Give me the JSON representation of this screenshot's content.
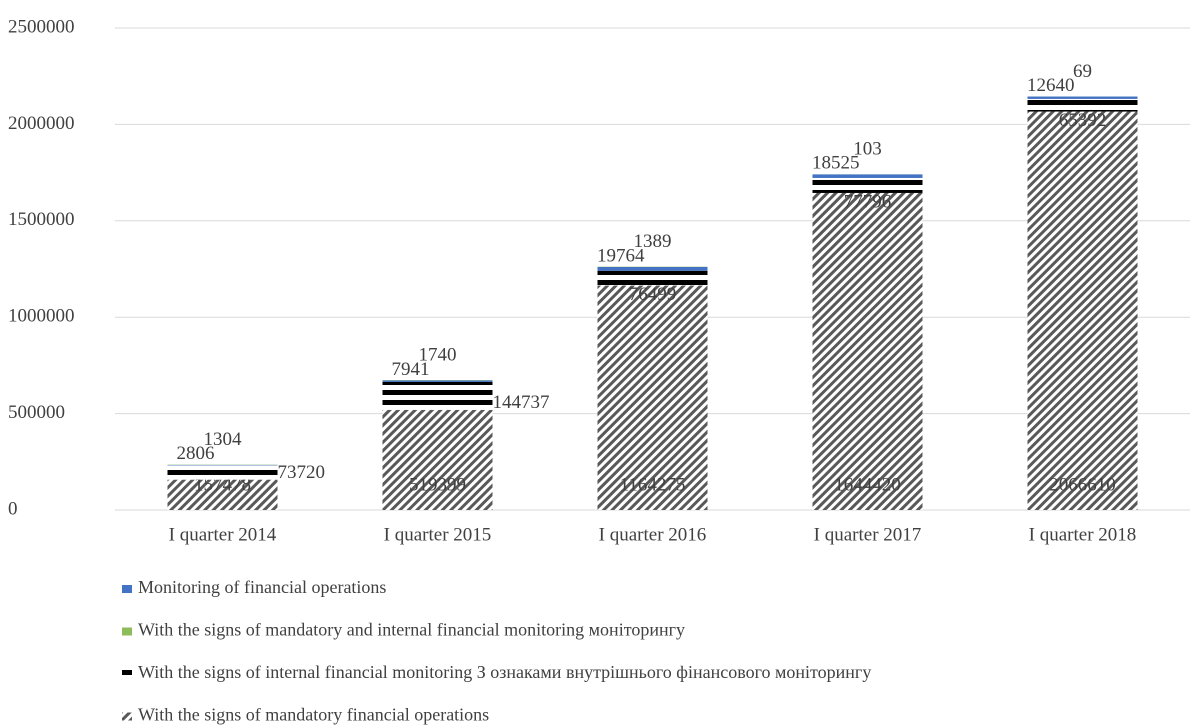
{
  "chart_data": {
    "type": "stacked-bar",
    "categories": [
      "I quarter 2014",
      "I quarter 2015",
      "I quarter 2016",
      "I quarter 2017",
      "I quarter 2018"
    ],
    "series": [
      {
        "name": "Monitoring of financial operations",
        "color": "#4472c4",
        "values": [
          2806,
          7941,
          19764,
          18525,
          12640
        ]
      },
      {
        "name": "With the signs of mandatory and internal financial monitoring моніторингу",
        "color": "#8fbc5a",
        "values": [
          1304,
          1740,
          1389,
          103,
          69
        ]
      },
      {
        "name": "With the signs of internal financial monitoring З ознаками внутрішнього фінансового моніторингу",
        "color": "#000000",
        "pattern": "horizontal-stripes",
        "values": [
          73720,
          144737,
          76499,
          77796,
          65392
        ]
      },
      {
        "name": "With the signs of mandatory financial operations",
        "color": "#595959",
        "pattern": "diagonal-hatch",
        "values": [
          157478,
          519399,
          1164275,
          1644420,
          2066610
        ]
      }
    ],
    "ylim": [
      0,
      2500000
    ],
    "yticks": [
      0,
      500000,
      1000000,
      1500000,
      2000000,
      2500000
    ],
    "grid": true
  }
}
